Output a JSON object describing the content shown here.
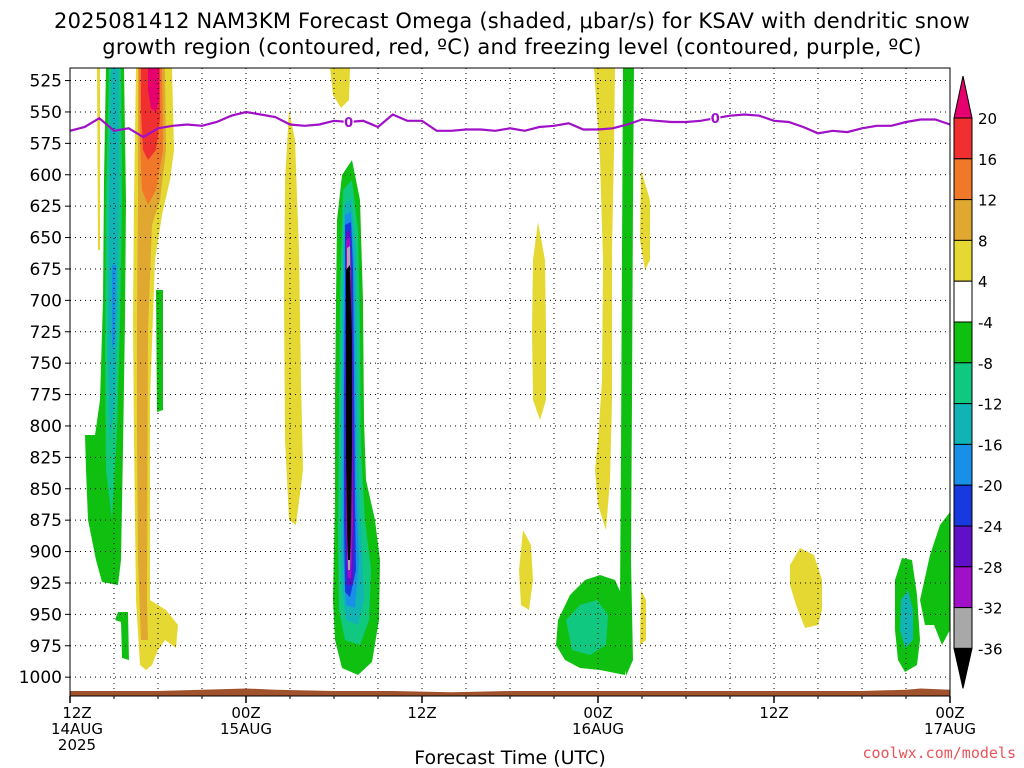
{
  "chart_data": {
    "type": "heatmap",
    "title_line1": "2025081412 NAM3KM Forecast Omega (shaded, μbar/s) for KSAV with dendritic snow",
    "title_line2": "growth region (contoured, red, ºC) and freezing level (contoured, purple, ºC)",
    "xlabel": "Forecast Time (UTC)",
    "x_range_hours": [
      0,
      60
    ],
    "x_ticks": [
      {
        "h": 0,
        "lines": [
          "12Z",
          "14AUG",
          "2025"
        ]
      },
      {
        "h": 12,
        "lines": [
          "00Z",
          "15AUG"
        ]
      },
      {
        "h": 24,
        "lines": [
          "12Z"
        ]
      },
      {
        "h": 36,
        "lines": [
          "00Z",
          "16AUG"
        ]
      },
      {
        "h": 48,
        "lines": [
          "12Z"
        ]
      },
      {
        "h": 60,
        "lines": [
          "00Z",
          "17AUG"
        ]
      }
    ],
    "y_ticks": [
      525,
      550,
      575,
      600,
      625,
      650,
      675,
      700,
      725,
      750,
      775,
      800,
      825,
      850,
      875,
      900,
      925,
      950,
      975,
      1000
    ],
    "ylim": [
      1015,
      515
    ],
    "grid": true,
    "colorbar": {
      "labels": [
        "20",
        "16",
        "12",
        "8",
        "4",
        "-4",
        "-8",
        "-12",
        "-16",
        "-20",
        "-24",
        "-28",
        "-32",
        "-36"
      ],
      "colors": [
        "#e6006e",
        "#f03030",
        "#f07828",
        "#e0a830",
        "#e6d832",
        "#ffffff",
        "#10c010",
        "#10c880",
        "#10b4b4",
        "#1890e8",
        "#1838e0",
        "#6010c8",
        "#a010c8",
        "#a8a8a8",
        "#000000"
      ]
    },
    "freezing_level": {
      "label": "0",
      "color": "#a010c8",
      "points": [
        [
          0,
          565
        ],
        [
          1,
          562
        ],
        [
          2,
          555
        ],
        [
          3,
          565
        ],
        [
          4,
          563
        ],
        [
          5,
          570
        ],
        [
          6,
          563
        ],
        [
          7,
          561
        ],
        [
          8,
          560
        ],
        [
          9,
          561
        ],
        [
          10,
          558
        ],
        [
          11,
          553
        ],
        [
          12,
          550
        ],
        [
          13,
          552
        ],
        [
          14,
          554
        ],
        [
          15,
          560
        ],
        [
          16,
          561
        ],
        [
          17,
          560
        ],
        [
          18,
          557
        ],
        [
          19,
          558
        ],
        [
          20,
          557
        ],
        [
          21,
          562
        ],
        [
          22,
          552
        ],
        [
          23,
          557
        ],
        [
          24,
          557
        ],
        [
          25,
          565
        ],
        [
          26,
          565
        ],
        [
          27,
          564
        ],
        [
          28,
          564
        ],
        [
          29,
          565
        ],
        [
          30,
          563
        ],
        [
          31,
          565
        ],
        [
          32,
          562
        ],
        [
          33,
          561
        ],
        [
          34,
          559
        ],
        [
          35,
          564
        ],
        [
          36,
          564
        ],
        [
          37,
          563
        ],
        [
          38,
          560
        ],
        [
          39,
          556
        ],
        [
          40,
          557
        ],
        [
          41,
          558
        ],
        [
          42,
          558
        ],
        [
          43,
          557
        ],
        [
          44,
          555
        ],
        [
          45,
          553
        ],
        [
          46,
          552
        ],
        [
          47,
          553
        ],
        [
          48,
          557
        ],
        [
          49,
          558
        ],
        [
          50,
          562
        ],
        [
          51,
          567
        ],
        [
          52,
          565
        ],
        [
          53,
          566
        ],
        [
          54,
          563
        ],
        [
          55,
          561
        ],
        [
          56,
          561
        ],
        [
          57,
          558
        ],
        [
          58,
          556
        ],
        [
          59,
          556
        ],
        [
          60,
          560
        ]
      ]
    },
    "surface": [
      [
        0,
        1011
      ],
      [
        6,
        1011
      ],
      [
        9,
        1010
      ],
      [
        12,
        1009
      ],
      [
        14,
        1010
      ],
      [
        18,
        1011
      ],
      [
        22,
        1011
      ],
      [
        26,
        1012
      ],
      [
        30,
        1011
      ],
      [
        36,
        1011
      ],
      [
        42,
        1011
      ],
      [
        48,
        1011
      ],
      [
        54,
        1011
      ],
      [
        57,
        1010
      ],
      [
        58,
        1009
      ],
      [
        60,
        1010
      ]
    ],
    "credit": "coolwx.com/models"
  }
}
